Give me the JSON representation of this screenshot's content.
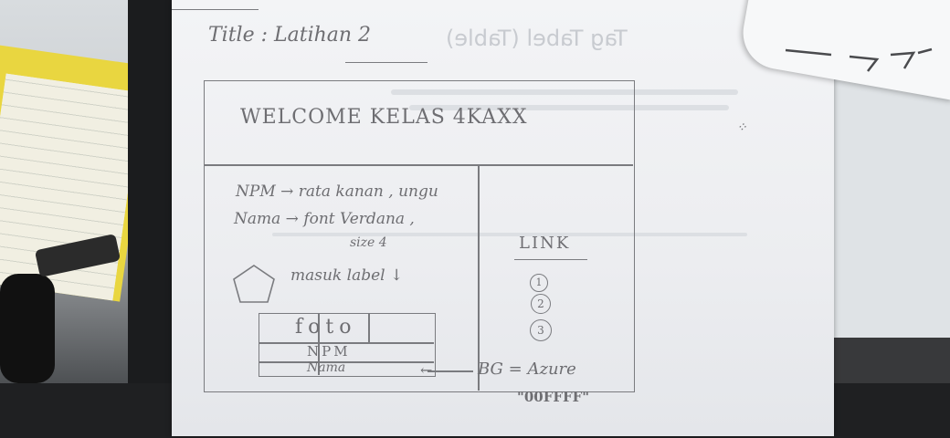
{
  "sketch": {
    "title_line": "Title : Latihan 2",
    "header_text": "WELCOME KELAS 4KAXX",
    "note_npm": "NPM → rata kanan , ungu",
    "note_nama": "Nama → font Verdana ,",
    "note_size": "size 4",
    "note_image": "masuk label ↓",
    "link_heading": "LINK",
    "links": [
      "1",
      "2",
      "3"
    ],
    "table": {
      "header": "foto",
      "row1": "NPM",
      "row2": "Nama"
    },
    "bg_note": "BG = Azure",
    "bg_code": "\"00FFFF\"",
    "ghost_heading": "Tag Tabel (Table)"
  },
  "colors": {
    "paper": "#eeeff2",
    "pencil": "#6e6e72",
    "desk_yellow": "#e9d640"
  }
}
